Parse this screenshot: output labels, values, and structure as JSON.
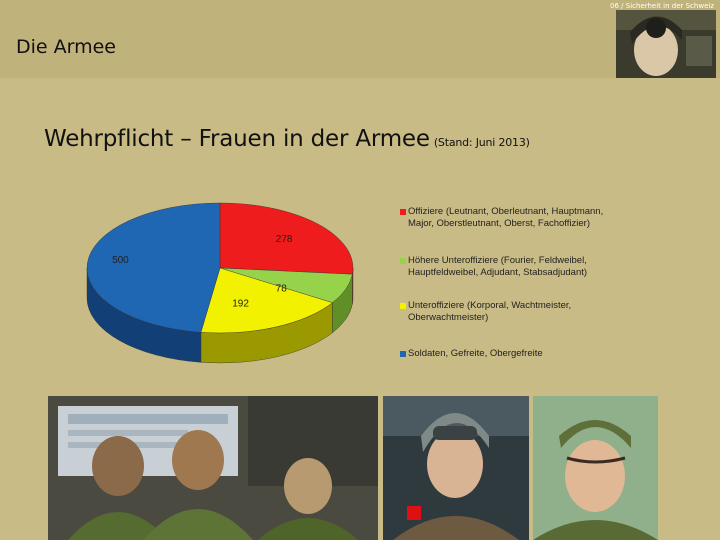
{
  "header": {
    "text": "06 / Sicherheit in der Schweiz"
  },
  "section_title": "Die Armee",
  "title": {
    "main": "Wehrpflicht – Frauen in der Armee",
    "stand": "(Stand: Juni 2013)"
  },
  "chart_data": {
    "type": "pie",
    "style": "3d",
    "legend_position": "right",
    "categories": [
      "Offiziere (Leutnant, Oberleutnant, Hauptmann, Major, Oberstleutnant, Oberst, Fachoffizier)",
      "Höhere Unteroffiziere (Fourier, Feldweibel, Hauptfeldweibel, Adjudant, Stabsadjudant)",
      "Unteroffiziere (Korporal, Wachtmeister, Oberwachtmeister)",
      "Soldaten, Gefreite, Obergefreite"
    ],
    "values": [
      278,
      78,
      192,
      500
    ],
    "data_labels": [
      "278",
      "78",
      "192",
      "500"
    ],
    "colors": [
      "#ee1c1c",
      "#96d24a",
      "#f2f200",
      "#1f66b3"
    ],
    "side_colors": [
      "#a81010",
      "#5f8f26",
      "#9a9a00",
      "#123f75"
    ]
  },
  "photos": [
    {
      "name": "photo-classroom",
      "label": ""
    },
    {
      "name": "photo-pilot",
      "label": ""
    },
    {
      "name": "photo-soldier",
      "label": ""
    }
  ]
}
